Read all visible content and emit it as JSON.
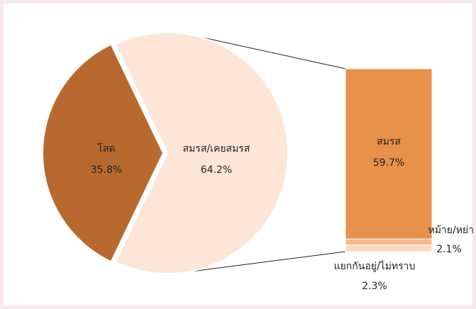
{
  "chart_data": {
    "type": "pie",
    "pie": {
      "categories": [
        "โสด",
        "สมรส/เคยสมรส"
      ],
      "values": [
        35.8,
        64.2
      ],
      "value_labels": [
        "35.8%",
        "64.2%"
      ],
      "colors": [
        "#b8692f",
        "#fde6d8"
      ]
    },
    "bar": {
      "categories": [
        "สมรส",
        "หม้าย/หย่า",
        "แยกกันอยู่/ไม่ทราบ"
      ],
      "values": [
        59.7,
        2.1,
        2.3
      ],
      "value_labels": [
        "59.7%",
        "2.1%",
        "2.3%"
      ],
      "colors": [
        "#e8914b",
        "#f6b98d",
        "#fbd8c0"
      ]
    }
  }
}
